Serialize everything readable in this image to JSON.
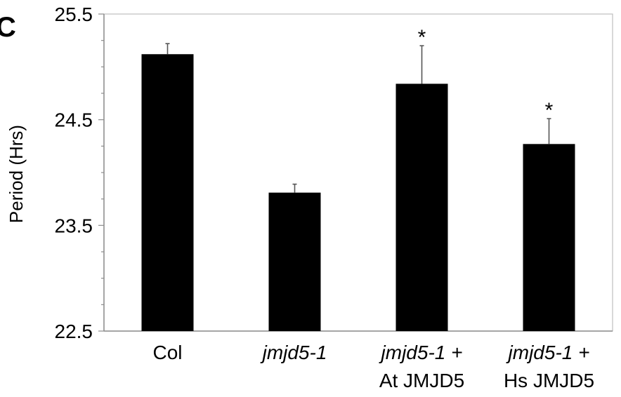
{
  "panel_label": "C",
  "chart_data": {
    "type": "bar",
    "ylabel": "Period (Hrs)",
    "ylim": [
      22.5,
      25.5
    ],
    "yticks": [
      "22.5",
      "23.5",
      "24.5",
      "25.5"
    ],
    "grid": false,
    "categories": [
      {
        "line1": "Col",
        "line1_italic": false,
        "line2": ""
      },
      {
        "line1": "jmjd5-1",
        "line1_italic": true,
        "line2": ""
      },
      {
        "line1": "jmjd5-1 +",
        "line1_italic": true,
        "line2": "At JMJD5"
      },
      {
        "line1": "jmjd5-1 +",
        "line1_italic": true,
        "line2": "Hs JMJD5"
      }
    ],
    "values": [
      25.12,
      23.81,
      24.84,
      24.27
    ],
    "errors": [
      0.1,
      0.08,
      0.36,
      0.24
    ],
    "significance": [
      "",
      "",
      "*",
      "*"
    ],
    "bar_color": "#000000"
  }
}
